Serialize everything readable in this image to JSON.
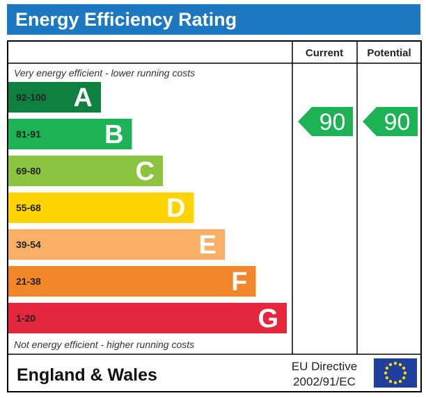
{
  "header": {
    "title": "Energy Efficiency Rating",
    "color": "#1d78bf"
  },
  "columns": {
    "current": "Current",
    "potential": "Potential"
  },
  "notes": {
    "top": "Very energy efficient - lower running costs",
    "bottom": "Not energy efficient - higher running costs"
  },
  "footer": {
    "region": "England & Wales",
    "directive_line1": "EU Directive",
    "directive_line2": "2002/91/EC",
    "flag_icon": "eu-flag-icon"
  },
  "chart_data": {
    "type": "bar",
    "title": "Energy Efficiency Rating",
    "bands": [
      {
        "range": "92-100",
        "letter": "A",
        "color": "#0f8040"
      },
      {
        "range": "81-91",
        "letter": "B",
        "color": "#1db254"
      },
      {
        "range": "69-80",
        "letter": "C",
        "color": "#8cc43f"
      },
      {
        "range": "55-68",
        "letter": "D",
        "color": "#ffd400"
      },
      {
        "range": "39-54",
        "letter": "E",
        "color": "#f7b066"
      },
      {
        "range": "21-38",
        "letter": "F",
        "color": "#f2862a"
      },
      {
        "range": "1-20",
        "letter": "G",
        "color": "#e5273e"
      }
    ],
    "current": 90,
    "potential": 90,
    "indicator_color": "#1db254"
  }
}
